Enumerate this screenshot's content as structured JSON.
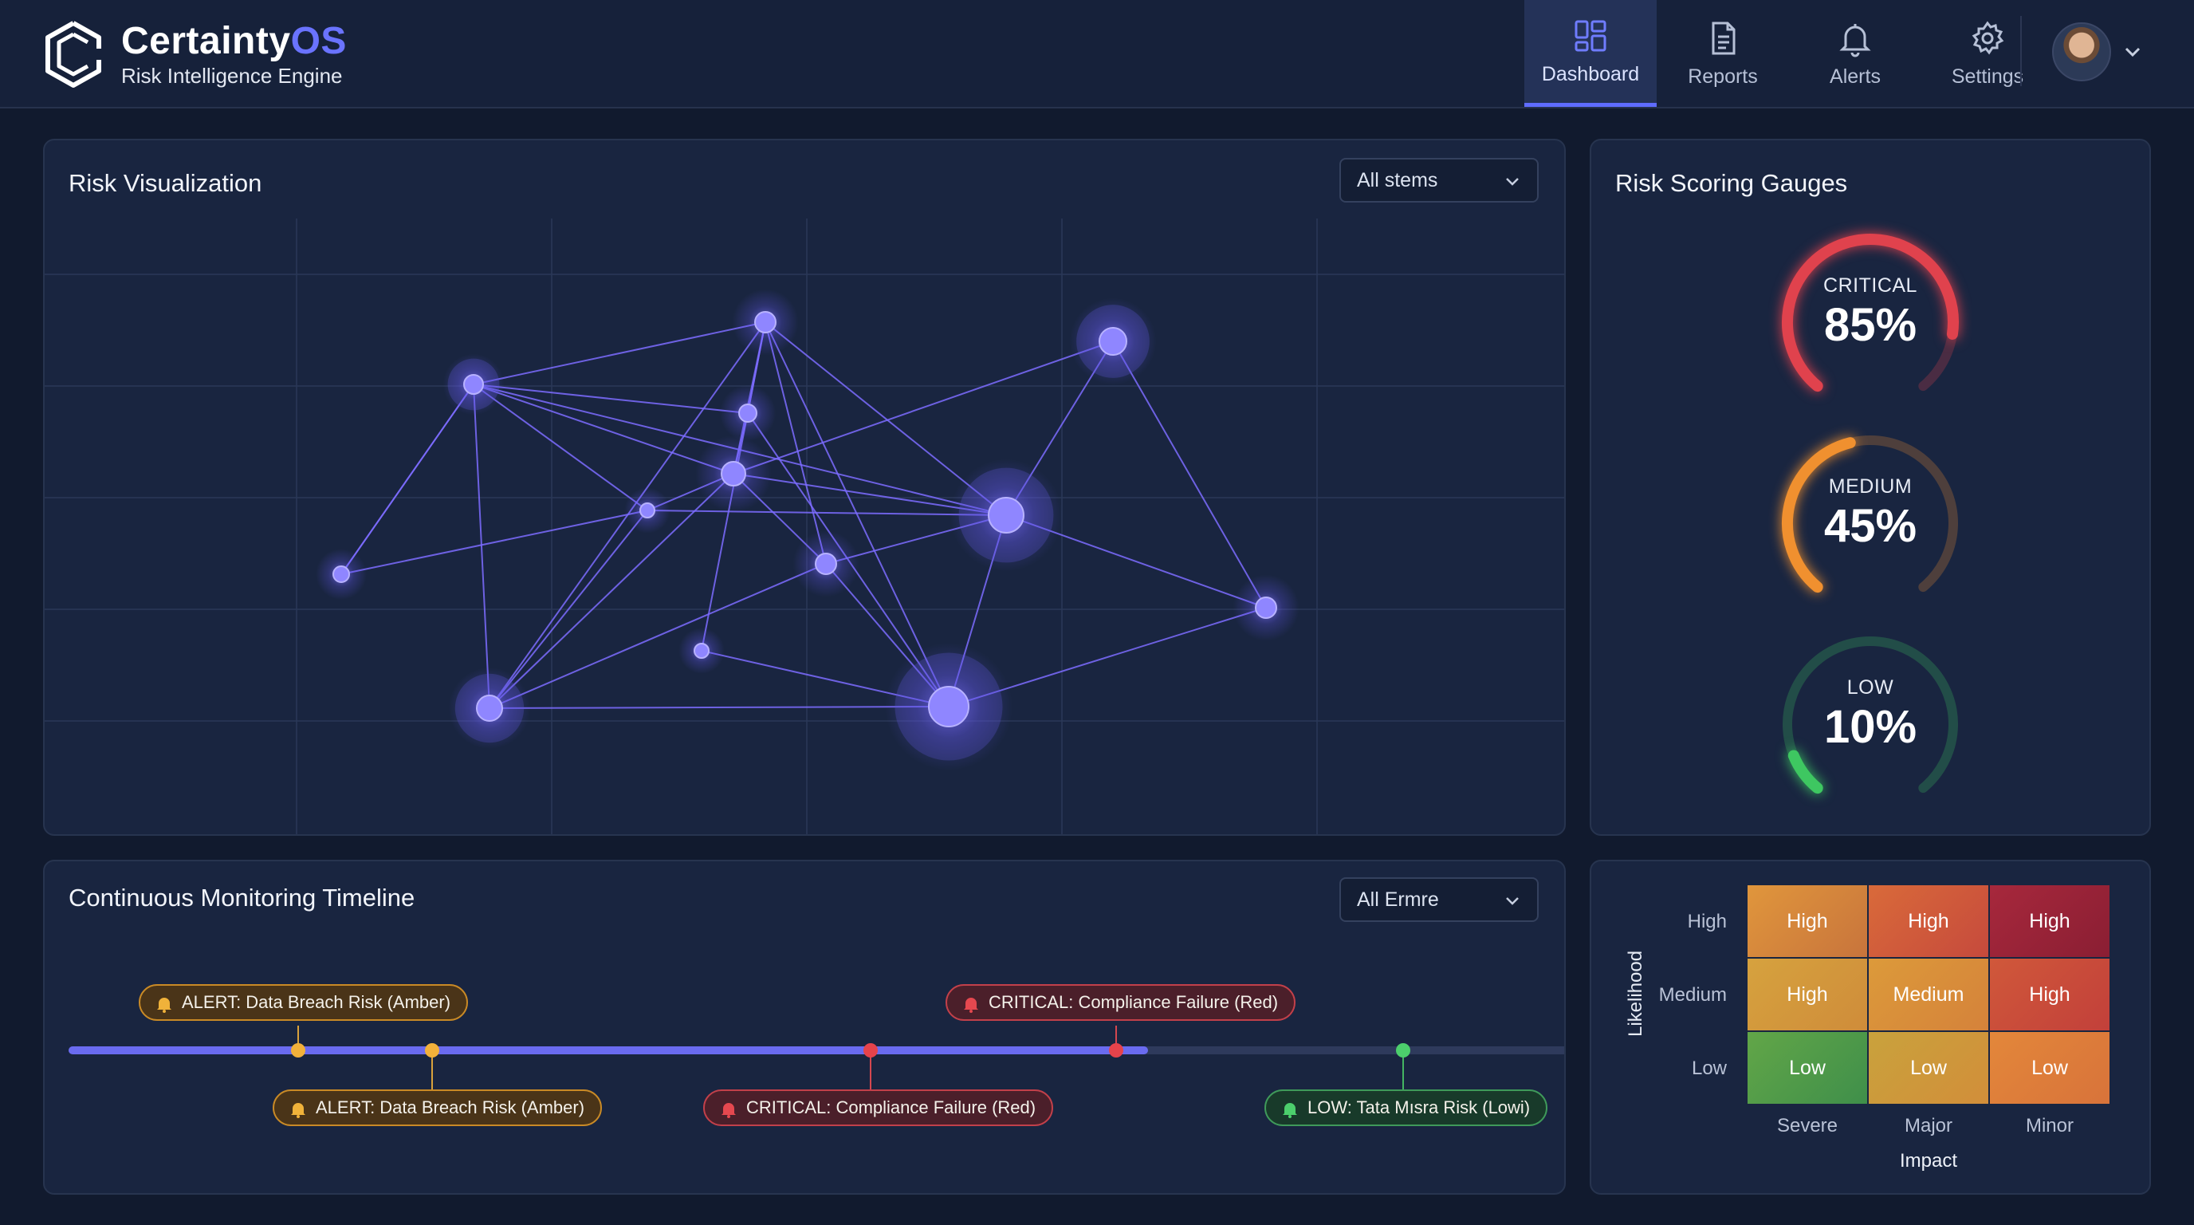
{
  "brand": {
    "name": "Certainty",
    "name_accent": "OS",
    "tagline": "Risk Intelligence Engine"
  },
  "nav": [
    {
      "label": "Dashboard",
      "icon": "dashboard-icon",
      "active": true
    },
    {
      "label": "Reports",
      "icon": "document-icon",
      "active": false
    },
    {
      "label": "Alerts",
      "icon": "bell-icon",
      "active": false
    },
    {
      "label": "Settings",
      "icon": "gear-icon",
      "active": false
    }
  ],
  "risk_viz": {
    "title": "Risk Visualization",
    "filter": "All stems"
  },
  "gauges": {
    "title": "Risk Scoring Gauges",
    "items": [
      {
        "label": "CRITICAL",
        "value": "85%",
        "level": 0.85,
        "color": "#e0424d"
      },
      {
        "label": "MEDIUM",
        "value": "45%",
        "level": 0.45,
        "color": "#f0902f"
      },
      {
        "label": "LOW",
        "value": "10%",
        "level": 0.1,
        "color": "#3ec761"
      }
    ]
  },
  "timeline": {
    "title": "Continuous Monitoring Timeline",
    "filter": "All Ermre",
    "tags": [
      {
        "text": "ALERT: Data Breach Risk (Amber)",
        "kind": "amber"
      },
      {
        "text": "ALERT: Data Breach Risk (Amber)",
        "kind": "amber"
      },
      {
        "text": "CRITICAL: Compliance Failure (Red)",
        "kind": "red"
      },
      {
        "text": "CRITICAL: Compliance Failure (Red)",
        "kind": "red"
      },
      {
        "text": "LOW: Tata Mısra Risk (Lowi)",
        "kind": "green"
      }
    ]
  },
  "matrix": {
    "y_axis": "Likelihood",
    "x_axis": "Impact",
    "rows": [
      "High",
      "Medium",
      "Low"
    ],
    "cols": [
      "Severe",
      "Major",
      "Minor"
    ],
    "cells": [
      [
        "High",
        "High",
        "High"
      ],
      [
        "High",
        "Medium",
        "High"
      ],
      [
        "Low",
        "Low",
        "Low"
      ]
    ]
  },
  "colors": {
    "accent": "#6a73ff",
    "critical": "#e0424d",
    "medium": "#f0902f",
    "low": "#3ec761"
  }
}
